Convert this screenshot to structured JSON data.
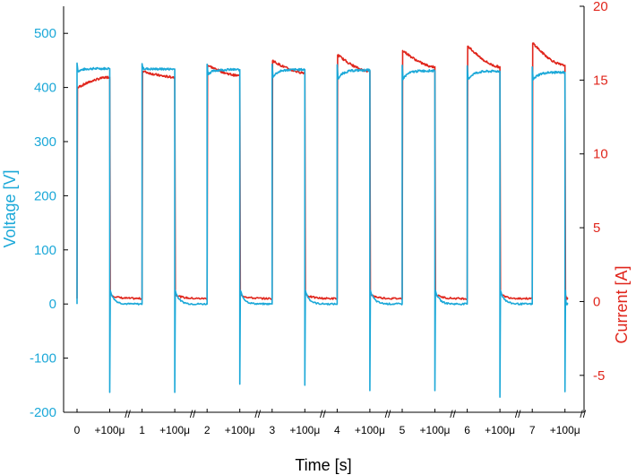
{
  "chart_data": {
    "type": "line",
    "xlabel": "Time [s]",
    "ylabel_left": "Voltage [V]",
    "ylabel_right": "Current [A]",
    "ylim_left": [
      -200,
      550
    ],
    "ylim_right": [
      -7.5,
      20
    ],
    "yticks_left": [
      -200,
      -100,
      0,
      100,
      200,
      300,
      400,
      500
    ],
    "yticks_right": [
      -5,
      0,
      5,
      10,
      15,
      20
    ],
    "grid": false,
    "x_tick_labels": [
      "0",
      "+100μ",
      "1",
      "+100μ",
      "2",
      "+100μ",
      "3",
      "+100μ",
      "4",
      "+100μ",
      "5",
      "+100μ",
      "6",
      "+100μ",
      "7",
      "+100μ"
    ],
    "axis_break_marker": "//",
    "colors": {
      "voltage": "#1ba8d8",
      "current": "#e0261c"
    },
    "pulses": [
      {
        "start": "0",
        "end": "+100μ",
        "voltage_start": 430,
        "voltage_end": 435,
        "voltage_end_spike": -163,
        "current_start": 14.5,
        "current_end": 15.2
      },
      {
        "start": "1",
        "end": "+100μ",
        "voltage_start": 435,
        "voltage_end": 434,
        "voltage_end_spike": -163,
        "current_start": 15.6,
        "current_end": 15.2
      },
      {
        "start": "2",
        "end": "+100μ",
        "voltage_start": 425,
        "voltage_end": 433,
        "voltage_end_spike": -148,
        "current_start": 16.0,
        "current_end": 15.3
      },
      {
        "start": "3",
        "end": "+100μ",
        "voltage_start": 420,
        "voltage_end": 433,
        "voltage_end_spike": -150,
        "current_start": 16.3,
        "current_end": 15.5
      },
      {
        "start": "4",
        "end": "+100μ",
        "voltage_start": 416,
        "voltage_end": 432,
        "voltage_end_spike": -160,
        "current_start": 16.7,
        "current_end": 15.6
      },
      {
        "start": "5",
        "end": "+100μ",
        "voltage_start": 416,
        "voltage_end": 431,
        "voltage_end_spike": -160,
        "current_start": 17.0,
        "current_end": 15.9
      },
      {
        "start": "6",
        "end": "+100μ",
        "voltage_start": 415,
        "voltage_end": 430,
        "voltage_end_spike": -172,
        "current_start": 17.3,
        "current_end": 15.9
      },
      {
        "start": "7",
        "end": "+100μ",
        "voltage_start": 414,
        "voltage_end": 428,
        "voltage_end_spike": -162,
        "current_start": 17.5,
        "current_end": 16.0
      }
    ],
    "off_level": {
      "voltage": 0,
      "current": 0.2
    }
  }
}
